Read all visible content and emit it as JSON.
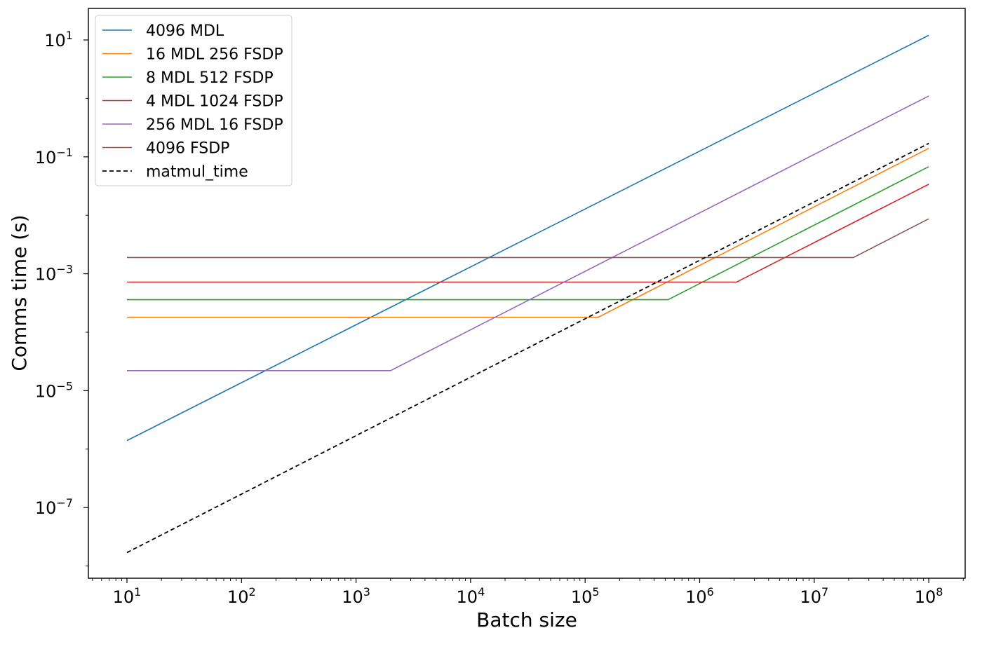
{
  "chart_data": {
    "type": "line",
    "title": "",
    "xlabel": "Batch size",
    "ylabel": "Comms time (s)",
    "xscale": "log",
    "yscale": "log",
    "xlim": [
      5,
      200000000
    ],
    "ylim": [
      5e-09,
      30
    ],
    "grid": false,
    "legend_position": "top-left",
    "x_ticks": [
      {
        "base": "10",
        "exp": "1"
      },
      {
        "base": "10",
        "exp": "2"
      },
      {
        "base": "10",
        "exp": "3"
      },
      {
        "base": "10",
        "exp": "4"
      },
      {
        "base": "10",
        "exp": "5"
      },
      {
        "base": "10",
        "exp": "6"
      },
      {
        "base": "10",
        "exp": "7"
      },
      {
        "base": "10",
        "exp": "8"
      }
    ],
    "y_ticks": [
      {
        "base": "10",
        "exp": "−7"
      },
      {
        "base": "10",
        "exp": "−5"
      },
      {
        "base": "10",
        "exp": "−3"
      },
      {
        "base": "10",
        "exp": "−1"
      },
      {
        "base": "10",
        "exp": "1"
      }
    ],
    "series": [
      {
        "name": "4096 MDL",
        "color": "#1f77b4",
        "dash": "",
        "points": [
          [
            10,
            1.4e-06
          ],
          [
            100000000,
            12
          ]
        ]
      },
      {
        "name": "16 MDL 256 FSDP",
        "color": "#ff7f0e",
        "dash": "",
        "points": [
          [
            10,
            0.00018
          ],
          [
            130000,
            0.00018
          ],
          [
            100000000,
            0.14
          ]
        ]
      },
      {
        "name": "8 MDL 512 FSDP",
        "color": "#2ca02c",
        "dash": "",
        "points": [
          [
            10,
            0.00036
          ],
          [
            530000,
            0.00036
          ],
          [
            100000000,
            0.068
          ]
        ]
      },
      {
        "name": "4 MDL 1024 FSDP",
        "color": "#d62728",
        "dash": "",
        "points": [
          [
            10,
            0.00072
          ],
          [
            2100000,
            0.00072
          ],
          [
            100000000,
            0.034
          ]
        ]
      },
      {
        "name": "256 MDL 16 FSDP",
        "color": "#9467bd",
        "dash": "",
        "points": [
          [
            10,
            2.2e-05
          ],
          [
            2000,
            2.2e-05
          ],
          [
            100000000,
            1.1
          ]
        ]
      },
      {
        "name": "4096 FSDP",
        "color": "#8c564b",
        "dash": "",
        "points": [
          [
            10,
            0.0019
          ],
          [
            22000000,
            0.0019
          ],
          [
            100000000,
            0.0087
          ]
        ]
      },
      {
        "name": "matmul_time",
        "color": "#000000",
        "dash": "6,4",
        "points": [
          [
            10,
            1.7e-08
          ],
          [
            100000000,
            0.17
          ]
        ]
      }
    ]
  }
}
